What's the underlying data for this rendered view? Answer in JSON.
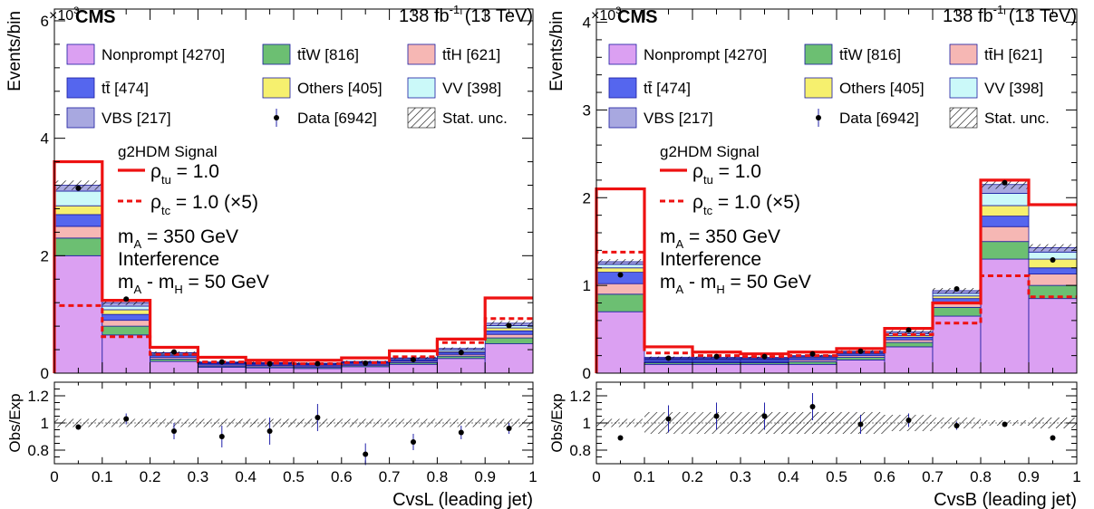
{
  "header": {
    "experiment": "CMS",
    "exp_prefix": "×10",
    "exp_power": "3",
    "lumi": "138 fb",
    "lumi_power": "-1",
    "energy": " (13 TeV)"
  },
  "labels": {
    "ylabel_main": "Events/bin",
    "ylabel_ratio": "Obs/Exp"
  },
  "legend": [
    {
      "key": "nonprompt",
      "label": "Nonprompt [4270]",
      "type": "fill"
    },
    {
      "key": "ttw",
      "label": "tt̄W [816]",
      "type": "fill"
    },
    {
      "key": "tth",
      "label": "tt̄H [621]",
      "type": "fill"
    },
    {
      "key": "tt",
      "label": "tt̄ [474]",
      "type": "fill"
    },
    {
      "key": "others",
      "label": "Others [405]",
      "type": "fill"
    },
    {
      "key": "vv",
      "label": "VV [398]",
      "type": "fill"
    },
    {
      "key": "vbs",
      "label": "VBS [217]",
      "type": "fill"
    },
    {
      "key": "data",
      "label": "Data [6942]",
      "type": "marker"
    },
    {
      "key": "stat",
      "label": "Stat. unc.",
      "type": "hatch"
    }
  ],
  "signal_box": {
    "title": "g2HDM Signal",
    "rho_tu": "ρ",
    "rho_tu_sub": "tu",
    "rho_tu_val": " = 1.0",
    "rho_tc": "ρ",
    "rho_tc_sub": "tc",
    "rho_tc_val": " = 1.0 (×5)",
    "mass_a": "m",
    "mass_a_sub": "A",
    "mass_a_val": " = 350 GeV",
    "interference": "Interference",
    "mass_diff_a": "m",
    "mass_diff_a_sub": "A",
    "mass_diff_mid": " - m",
    "mass_diff_h_sub": "H",
    "mass_diff_val": " = 50 GeV"
  },
  "colors": {
    "nonprompt": "#dba0f2",
    "ttw": "#6cbf72",
    "tth": "#f6b7b4",
    "tt": "#5566ee",
    "others": "#f6f06e",
    "vv": "#cbf9f9",
    "vbs": "#a8a8e0",
    "edge": "#1a1aa0",
    "signal": "#ee1111",
    "data": "#000000",
    "errbar": "#2222aa"
  },
  "chart_data": [
    {
      "type": "bar",
      "stacked": true,
      "bin_edges": [
        0,
        0.1,
        0.2,
        0.3,
        0.4,
        0.5,
        0.6,
        0.7,
        0.8,
        0.9,
        1.0
      ],
      "xlabel": "CvsL (leading jet)",
      "x_ticks": [
        "0",
        "0.1",
        "0.2",
        "0.3",
        "0.4",
        "0.5",
        "0.6",
        "0.7",
        "0.8",
        "0.9",
        "1"
      ],
      "ylabel": "Events/bin",
      "y_multiplier": "×10^3",
      "ylim": [
        0,
        6.2
      ],
      "y_ticks": [
        0,
        2,
        4,
        6
      ],
      "y_tick_labels": [
        "0",
        "2",
        "4",
        "6"
      ],
      "series": [
        {
          "name": "Nonprompt [4270]",
          "key": "nonprompt",
          "values": [
            2.0,
            0.65,
            0.2,
            0.1,
            0.09,
            0.08,
            0.11,
            0.15,
            0.25,
            0.5
          ]
        },
        {
          "name": "tt̄W [816]",
          "key": "ttw",
          "values": [
            0.3,
            0.15,
            0.04,
            0.02,
            0.02,
            0.02,
            0.02,
            0.03,
            0.04,
            0.1
          ]
        },
        {
          "name": "tt̄H [621]",
          "key": "tth",
          "values": [
            0.2,
            0.1,
            0.03,
            0.02,
            0.02,
            0.02,
            0.02,
            0.02,
            0.03,
            0.06
          ]
        },
        {
          "name": "tt̄ [474]",
          "key": "tt",
          "values": [
            0.2,
            0.1,
            0.03,
            0.02,
            0.02,
            0.02,
            0.02,
            0.02,
            0.03,
            0.06
          ]
        },
        {
          "name": "Others [405]",
          "key": "others",
          "values": [
            0.15,
            0.08,
            0.02,
            0.01,
            0.01,
            0.01,
            0.01,
            0.01,
            0.02,
            0.05
          ]
        },
        {
          "name": "VV [398]",
          "key": "vv",
          "values": [
            0.25,
            0.06,
            0.02,
            0.01,
            0.01,
            0.01,
            0.01,
            0.02,
            0.03,
            0.04
          ]
        },
        {
          "name": "VBS [217]",
          "key": "vbs",
          "values": [
            0.1,
            0.06,
            0.01,
            0.01,
            0.01,
            0.01,
            0.01,
            0.01,
            0.02,
            0.04
          ]
        }
      ],
      "stat_unc": [
        0.08,
        0.04,
        0.02,
        0.015,
        0.015,
        0.015,
        0.015,
        0.02,
        0.02,
        0.04
      ],
      "data": [
        3.15,
        1.26,
        0.36,
        0.19,
        0.16,
        0.16,
        0.17,
        0.23,
        0.35,
        0.81
      ],
      "signal_tu": [
        3.6,
        1.24,
        0.44,
        0.27,
        0.22,
        0.22,
        0.26,
        0.38,
        0.58,
        1.28
      ],
      "signal_tc": [
        1.15,
        0.62,
        0.32,
        0.19,
        0.17,
        0.16,
        0.18,
        0.28,
        0.52,
        0.93
      ],
      "ratio": {
        "ylabel": "Obs/Exp",
        "ylim": [
          0.7,
          1.3
        ],
        "y_ticks": [
          0.8,
          1.0,
          1.2
        ],
        "y_tick_labels": [
          "0.8",
          "1",
          "1.2"
        ],
        "band": [
          0.03,
          0.03,
          0.03,
          0.03,
          0.03,
          0.03,
          0.03,
          0.03,
          0.03,
          0.03
        ],
        "values": [
          0.97,
          1.03,
          0.94,
          0.9,
          0.94,
          1.04,
          0.77,
          0.86,
          0.93,
          0.96
        ],
        "errors": [
          0.02,
          0.04,
          0.06,
          0.08,
          0.1,
          0.1,
          0.08,
          0.06,
          0.05,
          0.04
        ]
      }
    },
    {
      "type": "bar",
      "stacked": true,
      "bin_edges": [
        0,
        0.1,
        0.2,
        0.3,
        0.4,
        0.5,
        0.6,
        0.7,
        0.8,
        0.9,
        1.0
      ],
      "xlabel": "CvsB (leading jet)",
      "x_ticks": [
        "0",
        "0.1",
        "0.2",
        "0.3",
        "0.4",
        "0.5",
        "0.6",
        "0.7",
        "0.8",
        "0.9",
        "1"
      ],
      "ylabel": "Events/bin",
      "y_multiplier": "×10^3",
      "ylim": [
        0,
        4.15
      ],
      "y_ticks": [
        0,
        1,
        2,
        3,
        4
      ],
      "y_tick_labels": [
        "0",
        "1",
        "2",
        "3",
        "4"
      ],
      "series": [
        {
          "name": "Nonprompt [4270]",
          "key": "nonprompt",
          "values": [
            0.7,
            0.1,
            0.1,
            0.1,
            0.1,
            0.15,
            0.3,
            0.65,
            1.3,
            0.85
          ]
        },
        {
          "name": "tt̄W [816]",
          "key": "ttw",
          "values": [
            0.2,
            0.02,
            0.02,
            0.02,
            0.03,
            0.03,
            0.05,
            0.1,
            0.2,
            0.15
          ]
        },
        {
          "name": "tt̄H [621]",
          "key": "tth",
          "values": [
            0.12,
            0.01,
            0.01,
            0.01,
            0.02,
            0.02,
            0.03,
            0.06,
            0.17,
            0.13
          ]
        },
        {
          "name": "tt̄ [474]",
          "key": "tt",
          "values": [
            0.13,
            0.02,
            0.02,
            0.02,
            0.02,
            0.02,
            0.03,
            0.04,
            0.12,
            0.07
          ]
        },
        {
          "name": "Others [405]",
          "key": "others",
          "values": [
            0.05,
            0.01,
            0.01,
            0.01,
            0.01,
            0.01,
            0.02,
            0.03,
            0.12,
            0.1
          ]
        },
        {
          "name": "VV [398]",
          "key": "vv",
          "values": [
            0.04,
            0.01,
            0.01,
            0.01,
            0.01,
            0.01,
            0.02,
            0.03,
            0.14,
            0.08
          ]
        },
        {
          "name": "VBS [217]",
          "key": "vbs",
          "values": [
            0.03,
            0.01,
            0.01,
            0.01,
            0.01,
            0.01,
            0.02,
            0.03,
            0.1,
            0.05
          ]
        }
      ],
      "stat_unc": [
        0.03,
        0.01,
        0.01,
        0.01,
        0.01,
        0.01,
        0.02,
        0.03,
        0.05,
        0.04
      ],
      "data": [
        1.12,
        0.17,
        0.19,
        0.19,
        0.22,
        0.25,
        0.49,
        0.96,
        2.17,
        1.29
      ],
      "signal_tu": [
        2.1,
        0.3,
        0.24,
        0.22,
        0.24,
        0.28,
        0.51,
        0.8,
        2.2,
        1.92
      ],
      "signal_tc": [
        1.38,
        0.23,
        0.2,
        0.19,
        0.2,
        0.24,
        0.44,
        0.57,
        1.11,
        0.87
      ],
      "ratio": {
        "ylabel": "Obs/Exp",
        "ylim": [
          0.7,
          1.3
        ],
        "y_ticks": [
          0.8,
          1.0,
          1.2
        ],
        "y_tick_labels": [
          "0.8",
          "1",
          "1.2"
        ],
        "band": [
          0.03,
          0.08,
          0.08,
          0.08,
          0.08,
          0.08,
          0.06,
          0.04,
          0.02,
          0.04
        ],
        "values": [
          0.89,
          1.03,
          1.05,
          1.05,
          1.12,
          0.99,
          1.02,
          0.98,
          0.99,
          0.89
        ],
        "errors": [
          0.02,
          0.1,
          0.1,
          0.1,
          0.1,
          0.07,
          0.05,
          0.03,
          0.01,
          0.02
        ]
      }
    }
  ]
}
